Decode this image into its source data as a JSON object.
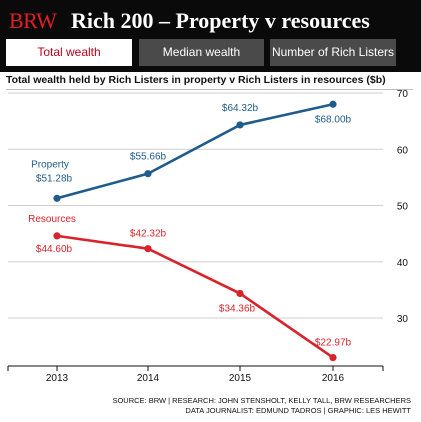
{
  "header": {
    "brand": "BRW",
    "title": "Rich 200 – Property v resources"
  },
  "tabs": [
    {
      "label": "Total wealth",
      "active": true
    },
    {
      "label": "Median wealth",
      "active": false
    },
    {
      "label": "Number of Rich Listers",
      "active": false
    }
  ],
  "chart_data": {
    "type": "line",
    "title": "Total wealth held by Rich Listers in property v Rich Listers in resources ($b)",
    "categories": [
      "2013",
      "2014",
      "2015",
      "2016"
    ],
    "ylim": [
      20,
      70
    ],
    "yticks": [
      "30",
      "40",
      "50",
      "60",
      "70"
    ],
    "grid": true,
    "series": [
      {
        "name": "Property",
        "color": "#1f5c8b",
        "values": [
          51.28,
          55.66,
          64.32,
          68.0
        ],
        "labels": [
          "$51.28b",
          "$55.66b",
          "$64.32b",
          "$68.00b"
        ]
      },
      {
        "name": "Resources",
        "color": "#d8232a",
        "values": [
          44.6,
          42.32,
          34.36,
          22.97
        ],
        "labels": [
          "$44.60b",
          "$42.32b",
          "$34.36b",
          "$22.97b"
        ]
      }
    ]
  },
  "footer": {
    "line1": "SOURCE: BRW | RESEARCH: JOHN STENSHOLT, KELLY TALL, BRW RESEARCHERS",
    "line2": "DATA JOURNALIST: EDMUND TADROS | GRAPHIC: LES HEWITT"
  }
}
